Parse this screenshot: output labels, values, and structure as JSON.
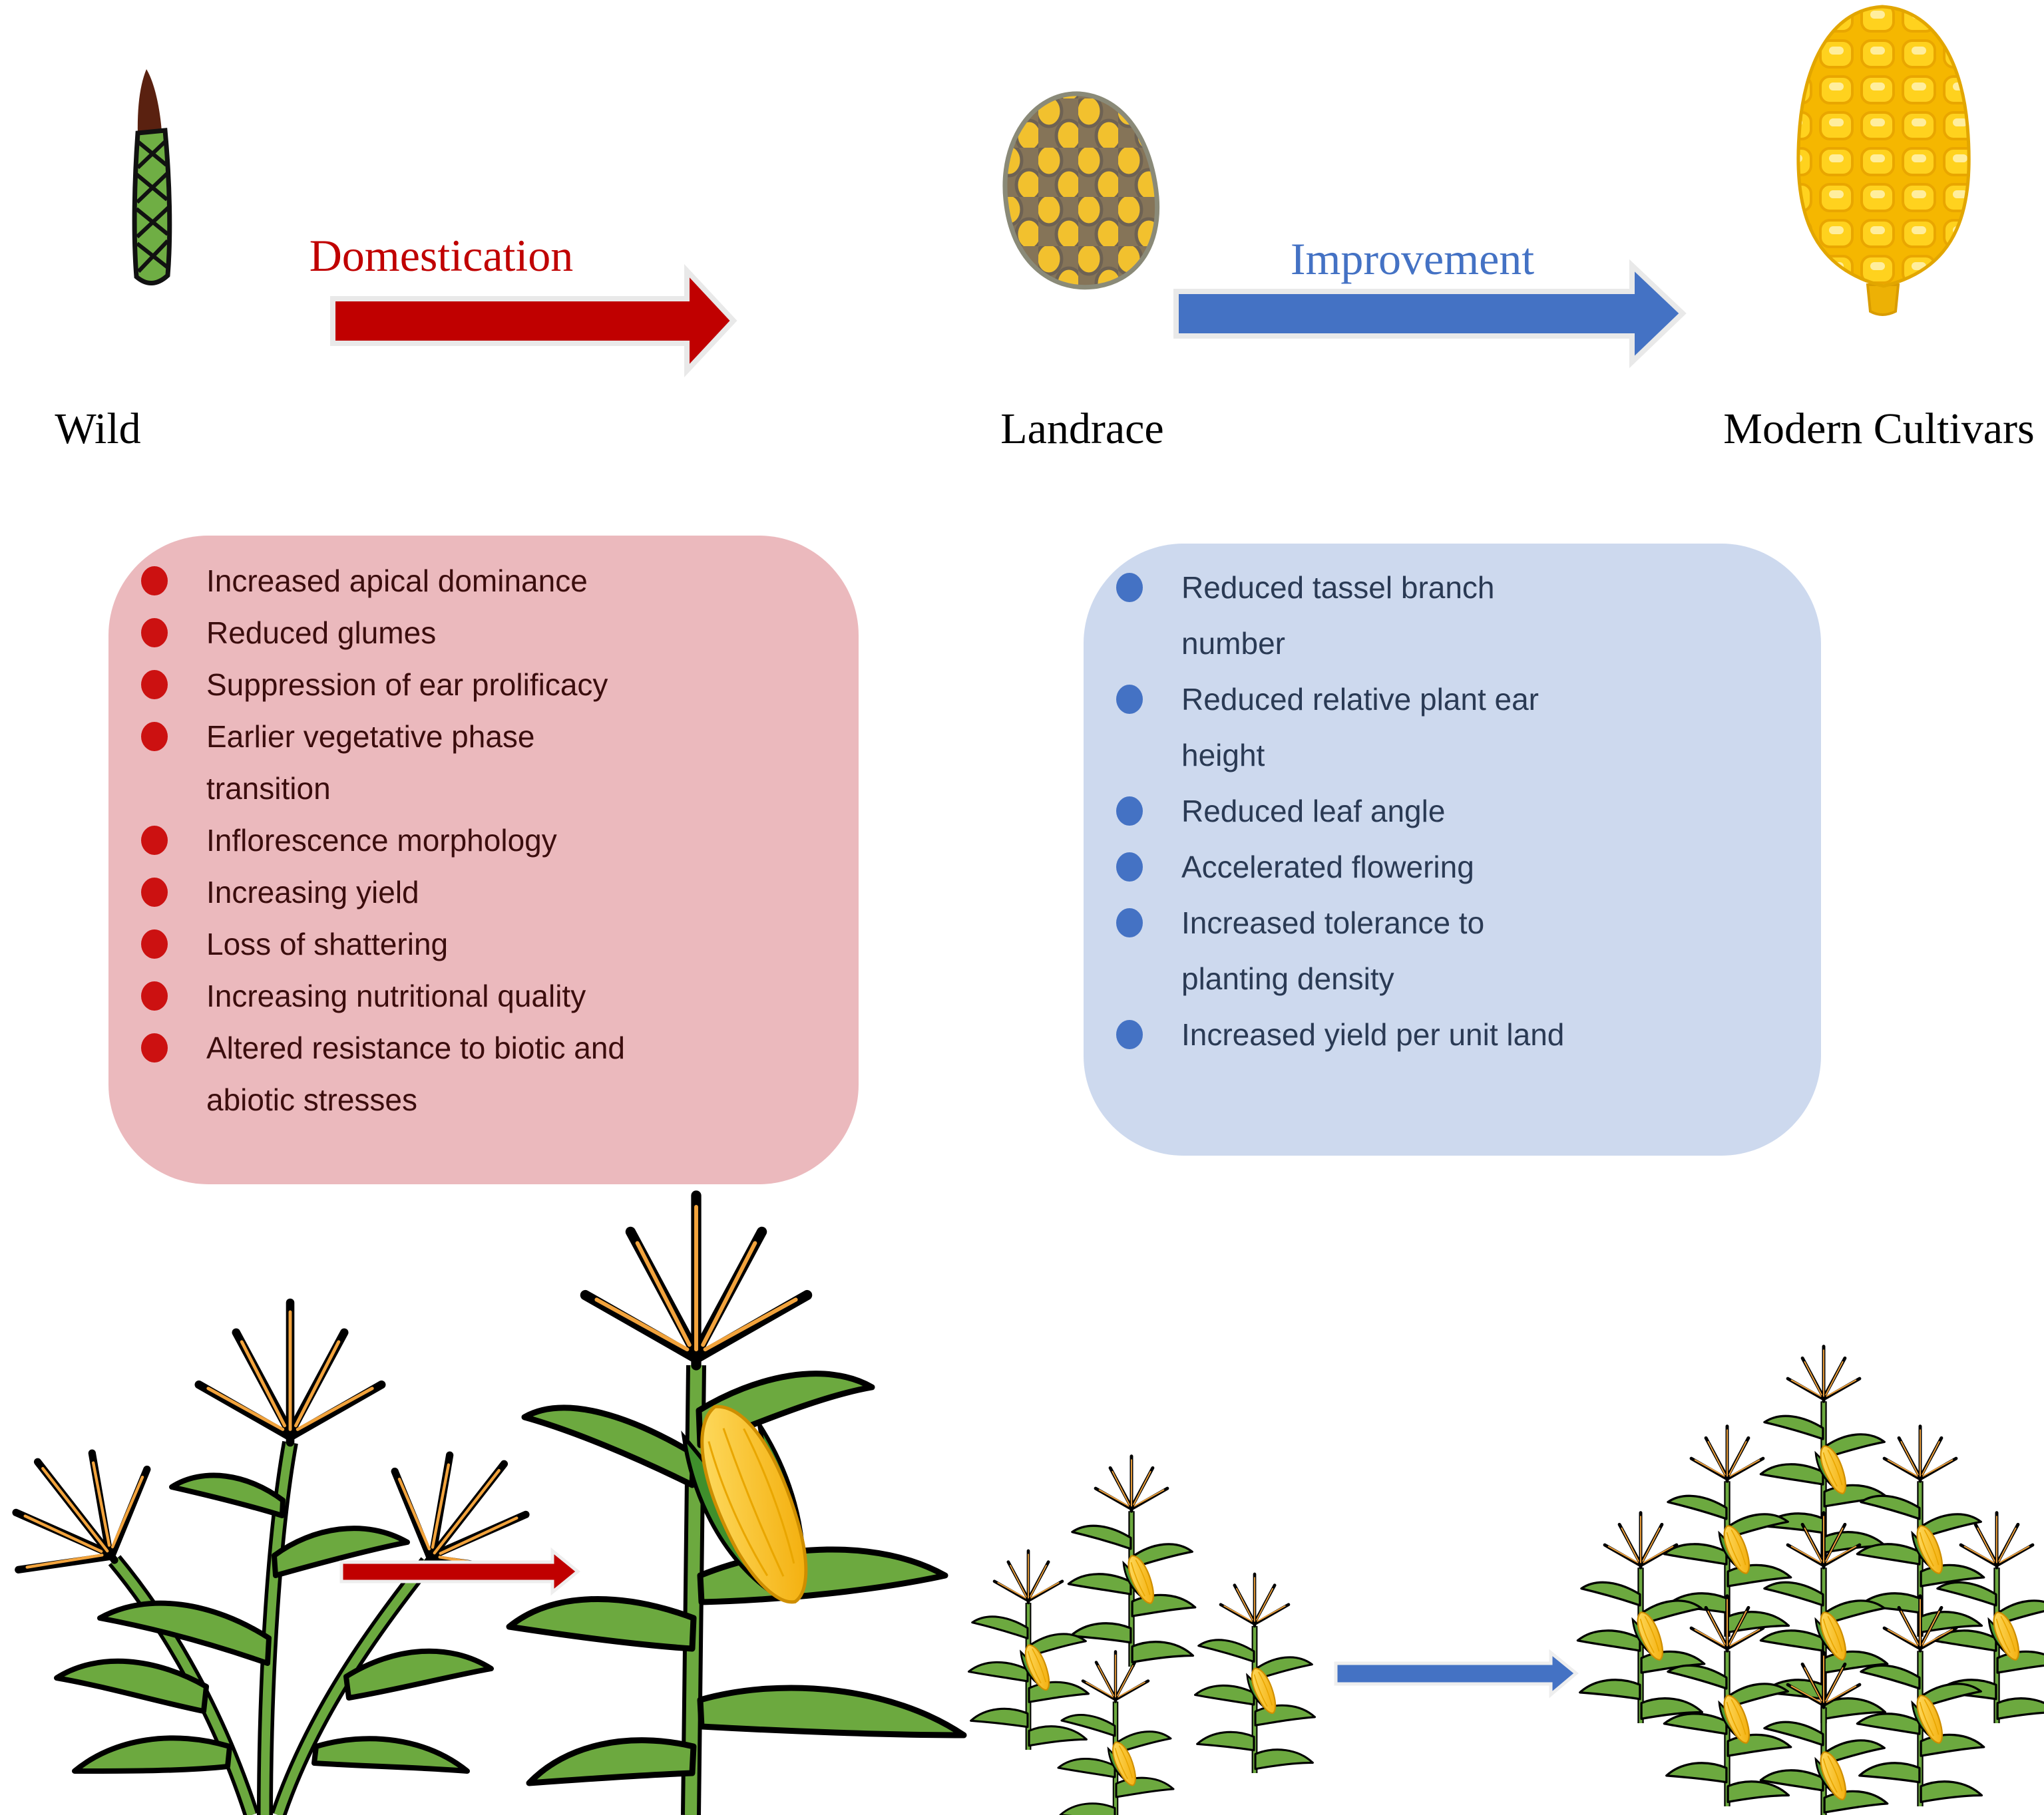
{
  "stages": {
    "wild": "Wild",
    "landrace": "Landrace",
    "modern": "Modern Cultivars"
  },
  "processes": {
    "domestication": "Domestication",
    "improvement": "Improvement"
  },
  "domestication_traits": {
    "items": [
      [
        "Increased apical dominance"
      ],
      [
        "Reduced glumes"
      ],
      [
        "Suppression of ear prolificacy"
      ],
      [
        "Earlier vegetative phase",
        "transition"
      ],
      [
        "Inflorescence morphology"
      ],
      [
        "Increasing yield"
      ],
      [
        "Loss of shattering"
      ],
      [
        "Increasing nutritional quality"
      ],
      [
        "Altered resistance to biotic and",
        "abiotic stresses"
      ]
    ]
  },
  "improvement_traits": {
    "items": [
      [
        "Reduced tassel branch",
        "number"
      ],
      [
        "Reduced relative plant ear",
        "height"
      ],
      [
        "Reduced leaf angle"
      ],
      [
        "Accelerated flowering"
      ],
      [
        "Increased tolerance to",
        "planting density"
      ],
      [
        "Increased yield per unit land"
      ]
    ]
  },
  "colors": {
    "domestication_red": "#C00000",
    "improvement_blue": "#4472C4",
    "pink_box_bg": "#EBB9BD",
    "pink_bullet": "#CC1111",
    "pink_text": "#3B0D0D",
    "blue_box_bg": "#CDD9EE",
    "blue_bullet": "#4472C4",
    "blue_text": "#2A3A54"
  },
  "illustrations": {
    "wild_icon": "teosinte-spike",
    "landrace_icon": "landrace-corn-cob",
    "modern_icon": "modern-corn-cob",
    "bottom_left": "wild-teosinte-plant",
    "bottom_mid": "tall-corn-plant-and-sparse-planting",
    "bottom_right": "dense-corn-field"
  }
}
